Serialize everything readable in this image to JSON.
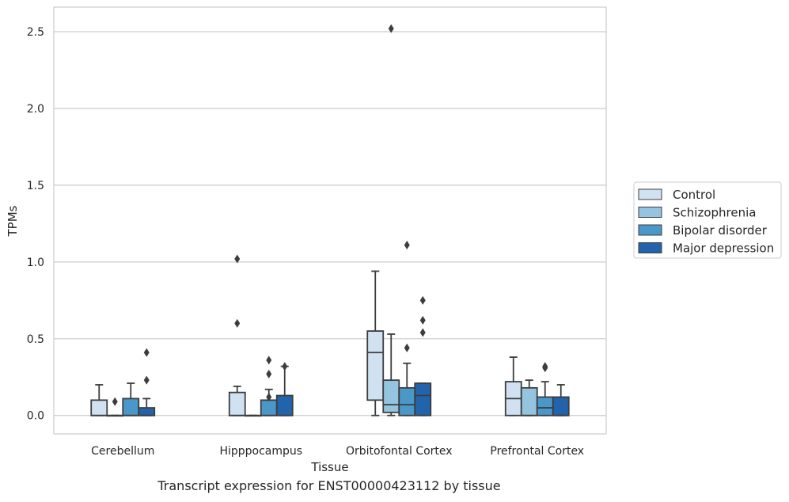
{
  "caption": "Transcript expression for ENST00000423112 by tissue",
  "chart_data": {
    "type": "box",
    "xlabel": "Tissue",
    "ylabel": "TPMs",
    "ylim": [
      -0.12,
      2.66
    ],
    "yticks": [
      0.0,
      0.5,
      1.0,
      1.5,
      2.0,
      2.5
    ],
    "ytick_labels": [
      "0.0",
      "0.5",
      "1.0",
      "1.5",
      "2.0",
      "2.5"
    ],
    "grid": "horizontal",
    "legend_position": "right",
    "categories": [
      "Cerebellum",
      "Hipppocampus",
      "Orbitofontal Cortex",
      "Prefrontal Cortex"
    ],
    "series": [
      {
        "name": "Control",
        "color": "#d0e1f2",
        "boxes": [
          {
            "q1": 0.0,
            "median": 0.0,
            "q3": 0.1,
            "whislo": 0.0,
            "whishi": 0.2,
            "fliers": []
          },
          {
            "q1": 0.0,
            "median": 0.0,
            "q3": 0.15,
            "whislo": 0.0,
            "whishi": 0.19,
            "fliers": [
              0.6,
              1.02
            ]
          },
          {
            "q1": 0.1,
            "median": 0.41,
            "q3": 0.55,
            "whislo": 0.0,
            "whishi": 0.94,
            "fliers": []
          },
          {
            "q1": 0.0,
            "median": 0.11,
            "q3": 0.22,
            "whislo": 0.0,
            "whishi": 0.38,
            "fliers": []
          }
        ]
      },
      {
        "name": "Schizophrenia",
        "color": "#94c4df",
        "boxes": [
          {
            "q1": 0.0,
            "median": 0.0,
            "q3": 0.0,
            "whislo": 0.0,
            "whishi": 0.0,
            "fliers": [
              0.09
            ]
          },
          {
            "q1": 0.0,
            "median": 0.0,
            "q3": 0.0,
            "whislo": 0.0,
            "whishi": 0.0,
            "fliers": []
          },
          {
            "q1": 0.02,
            "median": 0.07,
            "q3": 0.23,
            "whislo": 0.0,
            "whishi": 0.53,
            "fliers": [
              2.52
            ]
          },
          {
            "q1": 0.0,
            "median": 0.0,
            "q3": 0.18,
            "whislo": 0.0,
            "whishi": 0.23,
            "fliers": []
          }
        ]
      },
      {
        "name": "Bipolar disorder",
        "color": "#4a98c9",
        "boxes": [
          {
            "q1": 0.0,
            "median": 0.0,
            "q3": 0.11,
            "whislo": 0.0,
            "whishi": 0.21,
            "fliers": []
          },
          {
            "q1": 0.0,
            "median": 0.0,
            "q3": 0.1,
            "whislo": 0.0,
            "whishi": 0.17,
            "fliers": [
              0.12,
              0.27,
              0.36
            ]
          },
          {
            "q1": 0.0,
            "median": 0.07,
            "q3": 0.18,
            "whislo": 0.0,
            "whishi": 0.34,
            "fliers": [
              0.44,
              1.11
            ]
          },
          {
            "q1": 0.0,
            "median": 0.05,
            "q3": 0.12,
            "whislo": 0.0,
            "whishi": 0.22,
            "fliers": [
              0.31,
              0.32
            ]
          }
        ]
      },
      {
        "name": "Major depression",
        "color": "#2264ab",
        "boxes": [
          {
            "q1": 0.0,
            "median": 0.0,
            "q3": 0.05,
            "whislo": 0.0,
            "whishi": 0.11,
            "fliers": [
              0.23,
              0.41
            ]
          },
          {
            "q1": 0.0,
            "median": 0.0,
            "q3": 0.13,
            "whislo": 0.0,
            "whishi": 0.32,
            "fliers": [
              0.32
            ]
          },
          {
            "q1": 0.0,
            "median": 0.13,
            "q3": 0.21,
            "whislo": 0.0,
            "whishi": 0.21,
            "fliers": [
              0.54,
              0.62,
              0.75
            ]
          },
          {
            "q1": 0.0,
            "median": 0.0,
            "q3": 0.12,
            "whislo": 0.0,
            "whishi": 0.2,
            "fliers": []
          }
        ]
      }
    ]
  }
}
